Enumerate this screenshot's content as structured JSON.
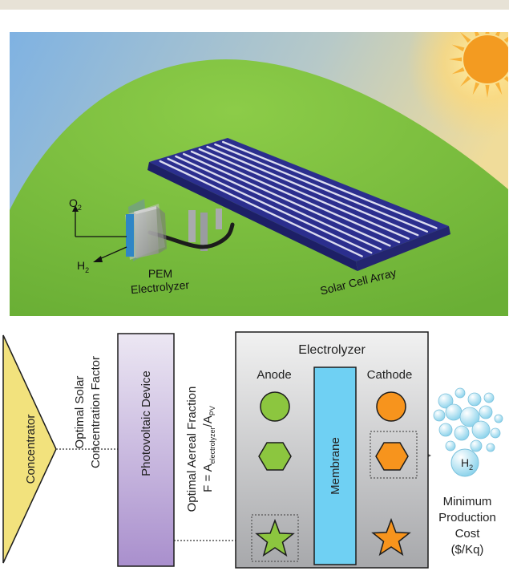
{
  "scene": {
    "labels": {
      "o2": "O",
      "o2_sub": "2",
      "h2": "H",
      "h2_sub": "2",
      "pem_line1": "PEM",
      "pem_line2": "Electrolyzer",
      "solar_array": "Solar Cell Array"
    },
    "colors": {
      "sky_top": "#7fb2e2",
      "sky_bottom": "#e9d8a0",
      "hill": "#7cc142",
      "sun": "#f39b21",
      "panel": "#2b2e8e",
      "panel_stripe": "#dcdcf0"
    }
  },
  "schematic": {
    "concentrator": "Concentrator",
    "solar_factor_line1": "Optimal Solar",
    "solar_factor_line2": "Concentration Factor",
    "pv_device": "Photovoltaic Device",
    "areal_line1": "Optimal Aereal Fraction",
    "areal_line2_prefix": "F = A",
    "areal_sub1": "electrolyzer",
    "areal_slash": "/A",
    "areal_sub2": "PV",
    "electrolyzer": "Electrolyzer",
    "anode": "Anode",
    "cathode": "Cathode",
    "membrane": "Membrane",
    "bubble_h": "H",
    "bubble_sub": "2",
    "cost_line1": "Minimum",
    "cost_line2": "Production",
    "cost_line3": "Cost",
    "cost_line4": "($/Kq)",
    "colors": {
      "concentrator": "#f2e27d",
      "pv_top": "#ece7f3",
      "pv_bottom": "#a98fcd",
      "membrane": "#6fd0f3",
      "anode_shape": "#8cc63f",
      "cathode_shape": "#f7941d"
    }
  }
}
